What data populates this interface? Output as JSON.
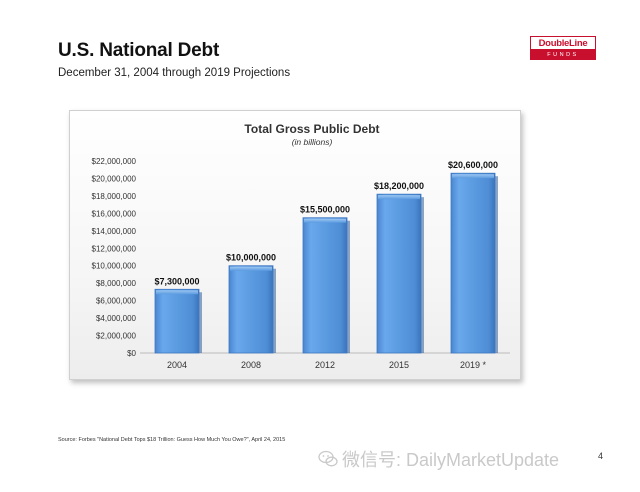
{
  "header": {
    "title": "U.S. National Debt",
    "subtitle": "December 31, 2004 through 2019 Projections"
  },
  "logo": {
    "brand": "DoubleLine",
    "sub": "FUNDS",
    "color": "#c8102e"
  },
  "chart_data": {
    "type": "bar",
    "title": "Total Gross Public Debt",
    "subtitle": "(in billions)",
    "categories": [
      "2004",
      "2008",
      "2012",
      "2015",
      "2019 *"
    ],
    "values": [
      7300000,
      10000000,
      15500000,
      18200000,
      20600000
    ],
    "data_labels": [
      "$7,300,000",
      "$10,000,000",
      "$15,500,000",
      "$18,200,000",
      "$20,600,000"
    ],
    "ylim": [
      0,
      22000000
    ],
    "yticks": [
      "$0",
      "$2,000,000",
      "$4,000,000",
      "$6,000,000",
      "$8,000,000",
      "$10,000,000",
      "$12,000,000",
      "$14,000,000",
      "$16,000,000",
      "$18,000,000",
      "$20,000,000",
      "$22,000,000"
    ],
    "ytick_values": [
      0,
      2000000,
      4000000,
      6000000,
      8000000,
      10000000,
      12000000,
      14000000,
      16000000,
      18000000,
      20000000,
      22000000
    ],
    "xlabel": "",
    "ylabel": "",
    "grid": false,
    "bar_color": "#5b9be0"
  },
  "footer": {
    "source": "Source:  Forbes \"National Debt Tops $18 Trillion: Guess How Much You Owe?\", April 24, 2015",
    "watermark": "微信号: DailyMarketUpdate",
    "page": "4"
  }
}
